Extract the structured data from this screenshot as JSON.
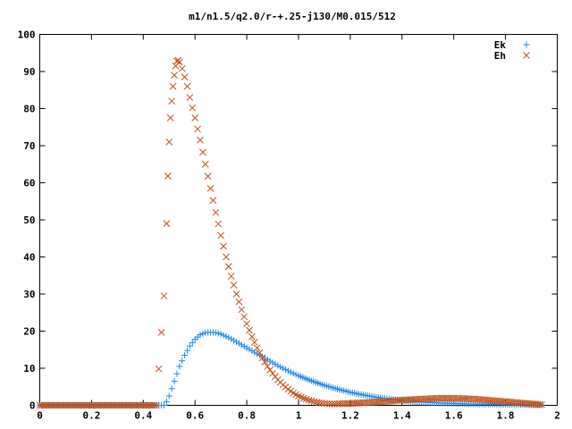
{
  "chart_data": {
    "type": "scatter",
    "title": "m1/n1.5/q2.0/r-+.25-j130/M0.015/512",
    "xlabel": "",
    "ylabel": "",
    "xlim": [
      0,
      2
    ],
    "ylim": [
      0,
      100
    ],
    "x_ticks": [
      0,
      0.2,
      0.4,
      0.6,
      0.8,
      1,
      1.2,
      1.4,
      1.6,
      1.8,
      2
    ],
    "x_tick_labels": [
      "0",
      "0.2",
      "0.4",
      "0.6",
      "0.8",
      "1",
      "1.2",
      "1.4",
      "1.6",
      "1.8",
      "2"
    ],
    "y_ticks": [
      0,
      10,
      20,
      30,
      40,
      50,
      60,
      70,
      80,
      90,
      100
    ],
    "y_tick_labels": [
      "0",
      "10",
      "20",
      "30",
      "40",
      "50",
      "60",
      "70",
      "80",
      "90",
      "100"
    ],
    "grid": false,
    "legend_position": "top-right",
    "series": [
      {
        "name": "Ek",
        "marker": "plus",
        "color": "#1e88e5",
        "x": [
          0.0,
          0.05,
          0.1,
          0.15,
          0.2,
          0.25,
          0.3,
          0.35,
          0.4,
          0.45,
          0.48,
          0.49,
          0.5,
          0.51,
          0.52,
          0.53,
          0.54,
          0.56,
          0.58,
          0.6,
          0.62,
          0.64,
          0.66,
          0.68,
          0.7,
          0.72,
          0.74,
          0.76,
          0.78,
          0.8,
          0.82,
          0.84,
          0.86,
          0.88,
          0.9,
          0.92,
          0.94,
          0.96,
          0.98,
          1.0,
          1.05,
          1.1,
          1.15,
          1.2,
          1.25,
          1.3,
          1.35,
          1.4,
          1.45,
          1.5,
          1.55,
          1.6,
          1.65,
          1.7,
          1.75,
          1.8,
          1.85,
          1.9,
          1.94
        ],
        "y": [
          0,
          0,
          0,
          0,
          0,
          0,
          0,
          0,
          0,
          0,
          0,
          1.0,
          2.5,
          4.5,
          6.5,
          8.5,
          10.5,
          13.5,
          16.0,
          17.8,
          19.0,
          19.6,
          19.7,
          19.6,
          19.2,
          18.6,
          17.9,
          17.1,
          16.3,
          15.5,
          14.7,
          13.9,
          13.1,
          12.3,
          11.5,
          10.7,
          10.0,
          9.3,
          8.6,
          8.0,
          6.6,
          5.4,
          4.4,
          3.5,
          2.8,
          2.2,
          1.7,
          1.3,
          1.0,
          0.8,
          0.6,
          0.5,
          0.4,
          0.3,
          0.3,
          0.2,
          0.2,
          0.1,
          0.1
        ]
      },
      {
        "name": "Eh",
        "marker": "cross",
        "color": "#c0501a",
        "x": [
          0.0,
          0.05,
          0.1,
          0.15,
          0.2,
          0.25,
          0.3,
          0.35,
          0.4,
          0.45,
          0.48,
          0.49,
          0.495,
          0.5,
          0.505,
          0.51,
          0.515,
          0.52,
          0.525,
          0.53,
          0.535,
          0.54,
          0.55,
          0.56,
          0.57,
          0.58,
          0.59,
          0.6,
          0.62,
          0.64,
          0.66,
          0.68,
          0.7,
          0.72,
          0.74,
          0.76,
          0.78,
          0.8,
          0.82,
          0.84,
          0.86,
          0.88,
          0.9,
          0.92,
          0.94,
          0.96,
          0.98,
          1.0,
          1.02,
          1.04,
          1.06,
          1.08,
          1.1,
          1.12,
          1.15,
          1.2,
          1.25,
          1.3,
          1.35,
          1.4,
          1.45,
          1.5,
          1.55,
          1.6,
          1.65,
          1.7,
          1.75,
          1.8,
          1.85,
          1.9,
          1.94
        ],
        "y": [
          0,
          0,
          0,
          0,
          0,
          0,
          0,
          0,
          0,
          0,
          29.5,
          49,
          61.8,
          71,
          77.5,
          82,
          86,
          89,
          91.5,
          92.8,
          93,
          92.5,
          90.8,
          88.5,
          86,
          83,
          80.2,
          77.5,
          71.5,
          65,
          58.5,
          52,
          45.8,
          40,
          34.8,
          30,
          25.8,
          22,
          18.5,
          15.5,
          12.8,
          10.5,
          8.6,
          6.9,
          5.5,
          4.3,
          3.3,
          2.5,
          1.9,
          1.4,
          1.0,
          0.7,
          0.5,
          0.4,
          0.4,
          0.5,
          0.7,
          0.9,
          1.1,
          1.4,
          1.6,
          1.8,
          1.9,
          1.9,
          1.8,
          1.6,
          1.3,
          1.0,
          0.7,
          0.4,
          0.2
        ]
      }
    ]
  }
}
